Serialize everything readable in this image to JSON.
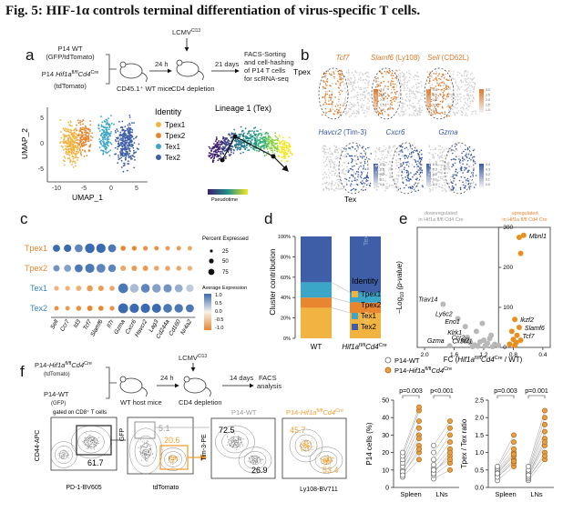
{
  "figure": {
    "title": "Fig. 5: HIF-1α controls terminal differentiation of virus-specific T cells."
  },
  "panel_labels": [
    "a",
    "b",
    "c",
    "d",
    "e",
    "f"
  ],
  "panel_a": {
    "donor_wt_line1": "P14 WT",
    "donor_wt_line2": "(GFP/tdTomato)",
    "donor_ko_prefix": "P14 ",
    "donor_ko_gene": "Hif1a",
    "donor_ko_fl": "fl/fl",
    "donor_ko_cd4": "Cd4",
    "donor_ko_cre": "Cre",
    "donor_ko_line2": "(tdTomato)",
    "host": "CD45.1⁺ WT mice",
    "time1": "24 h",
    "virus": "LCMV",
    "virus_sup": "Cl13",
    "depletion": "CD4 depletion",
    "time2": "21 days",
    "sort_l1": "FACS-Sorting",
    "sort_l2": "and cell-hashing",
    "sort_l3": "of P14 T cells",
    "sort_l4": "for scRNA-seq",
    "umap_y": "UMAP_2",
    "umap_x": "UMAP_1",
    "umap_xticks": [
      "-10",
      "-5",
      "0",
      "5"
    ],
    "umap_yticks": [
      "5",
      "0",
      "-5"
    ],
    "identity_title": "Identity",
    "identity_items": [
      {
        "label": "Tpex1",
        "color": "#f2b441"
      },
      {
        "label": "Tpex2",
        "color": "#e8862f"
      },
      {
        "label": "Tex1",
        "color": "#3ba6c8"
      },
      {
        "label": "Tex2",
        "color": "#3e5fa7"
      }
    ],
    "lineage_title": "Lineage 1 (Tex)",
    "pseudotime": "Pseudotime"
  },
  "panel_b": {
    "top_genes": [
      {
        "gene": "Tcf7",
        "extra": ""
      },
      {
        "gene": "Slamf6",
        "extra": " (Ly108)"
      },
      {
        "gene": "Sell",
        "extra": " (CD62L)"
      }
    ],
    "bottom_genes": [
      {
        "gene": "Havcr2",
        "extra": " (Tim-3)"
      },
      {
        "gene": "Cxcr6",
        "extra": ""
      },
      {
        "gene": "Gzma",
        "extra": ""
      }
    ],
    "tpex_label": "Tpex",
    "tex_label": "Tex",
    "scale_top": [
      "3.0",
      "2.5",
      "2.0",
      "1.5",
      "1.0"
    ],
    "scale_bottom": [
      "0.4",
      "0.3",
      "0.2",
      "0.1",
      "0.0"
    ]
  },
  "panel_c": {
    "rows": [
      "Tpex1",
      "Tpex2",
      "Tex1",
      "Tex2"
    ],
    "row_colors": [
      "#e8862f",
      "#e8862f",
      "#3b86c8",
      "#3b86c8"
    ],
    "genes": [
      "Sell",
      "Ccr7",
      "Id3",
      "Tcf7",
      "Slamf6",
      "Il7r",
      "Gzma",
      "Cxcr6",
      "Havcr2",
      "Lag3",
      "Cd244a",
      "Cd160",
      "Nr4a2"
    ],
    "size_title": "Percent Expressed",
    "size_ticks": [
      "25",
      "50",
      "75"
    ],
    "color_title": "Average Expression",
    "color_ticks": [
      "1.0",
      "0.5",
      "0.0",
      "-0.5",
      "-1.0"
    ],
    "pct": [
      [
        40,
        45,
        55,
        85,
        80,
        55,
        15,
        12,
        12,
        10,
        10,
        10,
        10
      ],
      [
        30,
        40,
        55,
        78,
        72,
        50,
        20,
        18,
        18,
        15,
        15,
        14,
        14
      ],
      [
        12,
        12,
        18,
        25,
        20,
        15,
        90,
        70,
        70,
        65,
        60,
        55,
        45
      ],
      [
        10,
        10,
        15,
        18,
        15,
        12,
        92,
        80,
        80,
        75,
        70,
        65,
        55
      ]
    ],
    "avg": [
      [
        1.0,
        1.0,
        0.8,
        1.0,
        1.0,
        0.9,
        -1.0,
        -1.0,
        -0.9,
        -0.9,
        -0.8,
        -0.8,
        -0.7
      ],
      [
        0.7,
        0.6,
        0.9,
        0.9,
        0.8,
        0.8,
        -0.7,
        -0.8,
        -0.8,
        -0.7,
        -0.7,
        -0.7,
        -0.6
      ],
      [
        -0.6,
        -0.6,
        -0.6,
        -0.8,
        -0.8,
        -0.7,
        0.9,
        0.4,
        0.8,
        0.6,
        0.7,
        0.5,
        0.3
      ],
      [
        -0.9,
        -0.8,
        -0.9,
        -1.0,
        -1.0,
        -0.9,
        1.0,
        1.0,
        1.0,
        1.0,
        0.9,
        0.9,
        0.9
      ]
    ]
  },
  "chart_data": [
    {
      "type": "bar",
      "panel": "d",
      "stacked": true,
      "categories": [
        "WT",
        "Hif1a fl/fl Cd4 Cre"
      ],
      "series": [
        {
          "name": "Tpex1",
          "values": [
            30,
            25
          ]
        },
        {
          "name": "Tpex2",
          "values": [
            10,
            10
          ]
        },
        {
          "name": "Tex1",
          "values": [
            15,
            10
          ]
        },
        {
          "name": "Tex2",
          "values": [
            45,
            55
          ]
        }
      ],
      "ylabel": "Cluster contribution",
      "yticks": [
        "0%",
        "20%",
        "40%",
        "60%",
        "80%",
        "100%"
      ],
      "ylim": [
        0,
        100
      ],
      "inside_labels": [
        "Tex",
        "Tpex"
      ],
      "legend_title": "Identity",
      "cat_wt": "WT",
      "cat_ko_gene": "Hif1a",
      "cat_ko_fl": "fl/fl",
      "cat_ko_cd4": "Cd4",
      "cat_ko_cre": "Cre"
    },
    {
      "type": "scatter",
      "panel": "e",
      "xlabel_prefix": "FC (",
      "xlabel_gene": "Hif1a",
      "xlabel_fl": "fl/fl",
      "xlabel_cd4": "Cd4",
      "xlabel_cre": "Cre",
      "xlabel_suffix": " / WT)",
      "ylabel_prefix": "−Log",
      "ylabel_sub": "10",
      "ylabel_suffix": " (p-value)",
      "xticks": [
        "2.0",
        "1.6",
        "1.2",
        "0.8",
        "0.4"
      ],
      "yticks": [
        "300",
        "200",
        "100",
        "0"
      ],
      "down_l1": "downregulated",
      "down_l2": "in Hif1a fl/fl Cd4 Cre",
      "up_l1": "upregulated",
      "up_l2": "in Hif1a fl/fl Cd4 Cre",
      "grey_points": [
        {
          "x": 1.75,
          "y": 108,
          "label": "Trav14"
        },
        {
          "x": 1.55,
          "y": 72,
          "label": "Ly6c2"
        },
        {
          "x": 1.45,
          "y": 52,
          "label": "Eno1"
        },
        {
          "x": 1.42,
          "y": 25,
          "label": "Klrk1"
        },
        {
          "x": 1.38,
          "y": 12,
          "label": "Ccr2"
        },
        {
          "x": 1.32,
          "y": 6,
          "label": "Id2"
        },
        {
          "x": 1.28,
          "y": 3,
          "label": "Cx3cr1"
        },
        {
          "x": 1.66,
          "y": 4,
          "label": "Gzma"
        },
        {
          "x": 1.2,
          "y": 18,
          "label": ""
        },
        {
          "x": 1.15,
          "y": 10,
          "label": ""
        },
        {
          "x": 1.1,
          "y": 30,
          "label": ""
        },
        {
          "x": 1.05,
          "y": 8,
          "label": ""
        },
        {
          "x": 1.25,
          "y": 14,
          "label": ""
        },
        {
          "x": 1.18,
          "y": 4,
          "label": ""
        },
        {
          "x": 1.12,
          "y": 22,
          "label": ""
        },
        {
          "x": 1.08,
          "y": 2,
          "label": ""
        },
        {
          "x": 1.3,
          "y": 40,
          "label": ""
        },
        {
          "x": 1.22,
          "y": 60,
          "label": ""
        },
        {
          "x": 1.0,
          "y": 5,
          "label": ""
        },
        {
          "x": 1.35,
          "y": 2,
          "label": ""
        }
      ],
      "orange_points": [
        {
          "x": 0.72,
          "y": 275,
          "label": ""
        },
        {
          "x": 0.66,
          "y": 280,
          "label": "Mbnl1"
        },
        {
          "x": 0.7,
          "y": 235,
          "label": ""
        },
        {
          "x": 0.78,
          "y": 70,
          "label": "Ikzf2"
        },
        {
          "x": 0.72,
          "y": 50,
          "label": "Slamf6"
        },
        {
          "x": 0.75,
          "y": 30,
          "label": "Tcf7"
        },
        {
          "x": 0.82,
          "y": 40,
          "label": ""
        },
        {
          "x": 0.8,
          "y": 20,
          "label": ""
        },
        {
          "x": 0.76,
          "y": 12,
          "label": ""
        },
        {
          "x": 0.85,
          "y": 8,
          "label": ""
        },
        {
          "x": 0.7,
          "y": 18,
          "label": ""
        },
        {
          "x": 0.78,
          "y": 5,
          "label": ""
        }
      ]
    },
    {
      "type": "scatter",
      "panel": "f-left",
      "ylabel": "P14 cells (%)",
      "yticks": [
        "0",
        "10",
        "20",
        "30",
        "40",
        "50"
      ],
      "ylim": [
        0,
        50
      ],
      "categories": [
        "Spleen",
        "LNs"
      ],
      "pvalues": [
        "p=0.003",
        "p<0.001"
      ],
      "spleen_wt": [
        6,
        8,
        10,
        12,
        14,
        16,
        18,
        20,
        9,
        7
      ],
      "spleen_ko": [
        16,
        20,
        24,
        30,
        34,
        38,
        44,
        46,
        28,
        22
      ],
      "ln_wt": [
        5,
        7,
        9,
        11,
        13,
        16,
        20,
        24,
        8,
        10
      ],
      "ln_ko": [
        10,
        14,
        18,
        22,
        26,
        30,
        34,
        38,
        20,
        16
      ]
    },
    {
      "type": "scatter",
      "panel": "f-right",
      "ylabel": "Tpex / Tex ratio",
      "yticks": [
        "0.0",
        "0.5",
        "1.0",
        "1.5",
        "2.0",
        "2.5"
      ],
      "ylim": [
        0,
        2.5
      ],
      "categories": [
        "Spleen",
        "LNs"
      ],
      "pvalues": [
        "p=0.003",
        "p=0.001"
      ],
      "spleen_wt": [
        0.2,
        0.3,
        0.35,
        0.4,
        0.45,
        0.5,
        0.55,
        0.6,
        0.3,
        0.4
      ],
      "spleen_ko": [
        0.6,
        0.7,
        0.8,
        0.9,
        1.0,
        1.1,
        1.3,
        1.5,
        0.75,
        0.95
      ],
      "ln_wt": [
        0.2,
        0.25,
        0.3,
        0.35,
        0.4,
        0.45,
        0.5,
        0.6,
        0.3,
        0.35
      ],
      "ln_ko": [
        0.8,
        1.0,
        1.2,
        1.4,
        1.6,
        1.8,
        2.0,
        2.2,
        0.9,
        1.3
      ]
    }
  ],
  "panel_f": {
    "ko_prefix": "P14-",
    "ko_gene": "Hif1a",
    "ko_fl": "fl/fl",
    "ko_cd4": "Cd4",
    "ko_cre": "Cre",
    "ko_sub": "(tdTomato)",
    "wt_line1": "P14-WT",
    "wt_line2": "(GFP)",
    "host": "WT host mice",
    "time1": "24 h",
    "virus": "LCMV",
    "virus_sup": "Cl13",
    "depletion": "CD4 depletion",
    "time2": "14 days",
    "facs_l1": "FACS",
    "facs_l2": "analysis",
    "legend_wt": "P14-WT",
    "legend_ko_prefix": "P14-",
    "gate_note": "gated on CD8⁺ T cells",
    "flow1_y": "CD44-APC",
    "flow1_x": "PD-1-BV605",
    "flow1_pct": "61.7",
    "flow2_y": "GFP",
    "flow2_x": "tdTomato",
    "flow2_pct_top": "5.1",
    "flow2_pct_bottom": "20.6",
    "flow3_title": "P14-WT",
    "flow3_y": "Tim-3-PE",
    "flow3_pct_top": "72.5",
    "flow3_pct_bottom": "26.9",
    "flow4_title_prefix": "P14-",
    "flow4_x": "Ly108-BV711",
    "flow4_pct_top": "45.7",
    "flow4_pct_bottom": "53.4",
    "axis_ticks": [
      "0",
      "10³",
      "10⁴",
      "10⁵"
    ]
  }
}
